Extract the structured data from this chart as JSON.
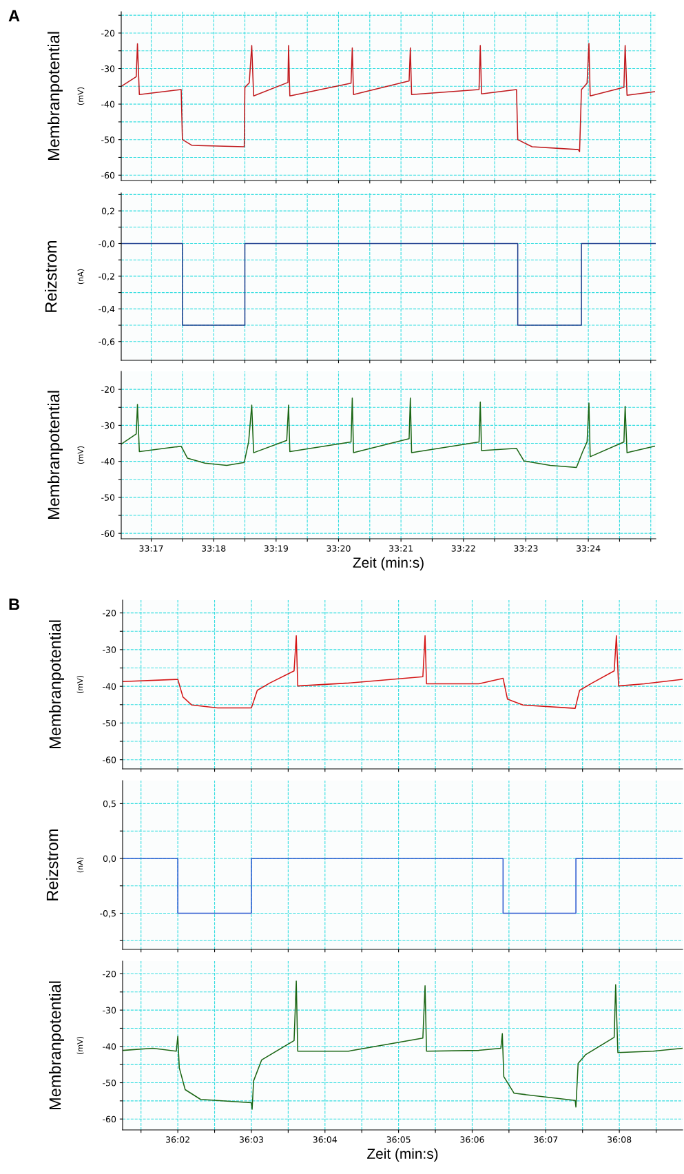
{
  "chart_data": [
    {
      "type": "line",
      "ylabel": "Membranpotential",
      "annotations": [
        "(mV)",
        "A"
      ],
      "tick_labels": "y",
      "grid": true,
      "xlim": [
        1996.52,
        2005.08
      ],
      "ylim": [
        -61.5,
        -14
      ],
      "xticks": [
        1997,
        1997.5,
        1998,
        1998.5,
        1999,
        1999.5,
        2000,
        2000.5,
        2001,
        2001.5,
        2002,
        2002.5,
        2003,
        2003.5,
        2004,
        2004.5,
        2005
      ],
      "yticks": [
        {
          "value": -15,
          "label": null
        },
        -20,
        {
          "value": -25,
          "label": null
        },
        -30,
        {
          "value": -35,
          "label": null
        },
        -40,
        {
          "value": -45,
          "label": null
        },
        -50,
        {
          "value": -55,
          "label": null
        },
        -60
      ],
      "series": [
        {
          "color": "#c0181c",
          "x": [
            1996.52,
            1996.76,
            1996.78,
            1996.81,
            1997.48,
            1997.5,
            1997.65,
            1998.49,
            1998.5,
            1998.57,
            1998.61,
            1998.64,
            1999.19,
            1999.2,
            1999.22,
            2000.2,
            2000.22,
            2000.24,
            2001.13,
            2001.15,
            2001.17,
            2002.25,
            2002.27,
            2002.29,
            2002.85,
            2002.87,
            2003.1,
            2003.84,
            2003.86,
            2003.89,
            2003.98,
            2004.01,
            2004.03,
            2004.57,
            2004.59,
            2004.62,
            2005.06
          ],
          "values": [
            -35,
            -32.3,
            -23,
            -37.3,
            -35.9,
            -50,
            -51.6,
            -52,
            -35.3,
            -34,
            -23.5,
            -37.7,
            -33.9,
            -23.5,
            -37.7,
            -34.1,
            -24.2,
            -37.3,
            -33.5,
            -24.2,
            -37.3,
            -35.9,
            -23.5,
            -37.1,
            -35.9,
            -50,
            -52,
            -52.8,
            -53.4,
            -35.9,
            -34.1,
            -22.9,
            -37.7,
            -35.3,
            -23.5,
            -37.5,
            -36.5
          ]
        }
      ]
    },
    {
      "type": "step",
      "ylabel": "Reizstrom",
      "annotations": [
        "(nA)"
      ],
      "tick_labels": "y",
      "grid": true,
      "xlim": [
        1996.52,
        2005.08
      ],
      "ylim": [
        -0.715,
        0.31
      ],
      "xticks": [
        1997,
        1997.5,
        1998,
        1998.5,
        1999,
        1999.5,
        2000,
        2000.5,
        2001,
        2001.5,
        2002,
        2002.5,
        2003,
        2003.5,
        2004,
        2004.5,
        2005
      ],
      "yticks": [
        {
          "value": 0.3,
          "label": null
        },
        {
          "value": 0.2,
          "label": "0,2"
        },
        {
          "value": 0.1,
          "label": null
        },
        {
          "value": 0,
          "label": "-0,0"
        },
        {
          "value": -0.1,
          "label": null
        },
        {
          "value": -0.2,
          "label": "-0,2"
        },
        {
          "value": -0.3,
          "label": null
        },
        {
          "value": -0.4,
          "label": "-0,4"
        },
        {
          "value": -0.5,
          "label": null
        },
        {
          "value": -0.6,
          "label": "-0,6"
        }
      ],
      "series": [
        {
          "color": "#1f3f8f",
          "x": [
            1996.52,
            1997.5,
            1998.5,
            2002.87,
            2003.89,
            2005.08
          ],
          "values": [
            0,
            -0.5,
            0,
            -0.5,
            0,
            0
          ]
        }
      ]
    },
    {
      "type": "line",
      "ylabel": "Membranpotential",
      "xlabel": "Zeit (min:s)",
      "annotations": [
        "(mV)"
      ],
      "grid": true,
      "xlim": [
        1996.52,
        2005.08
      ],
      "ylim": [
        -61.5,
        -15
      ],
      "xticks": [
        {
          "value": 1997,
          "label": "33:17"
        },
        {
          "value": 1997.5,
          "label": null
        },
        {
          "value": 1998,
          "label": "33:18"
        },
        {
          "value": 1998.5,
          "label": null
        },
        {
          "value": 1999,
          "label": "33:19"
        },
        {
          "value": 1999.5,
          "label": null
        },
        {
          "value": 2000,
          "label": "33:20"
        },
        {
          "value": 2000.5,
          "label": null
        },
        {
          "value": 2001,
          "label": "33:21"
        },
        {
          "value": 2001.5,
          "label": null
        },
        {
          "value": 2002,
          "label": "33:22"
        },
        {
          "value": 2002.5,
          "label": null
        },
        {
          "value": 2003,
          "label": "33:23"
        },
        {
          "value": 2003.5,
          "label": null
        },
        {
          "value": 2004,
          "label": "33:24"
        },
        {
          "value": 2004.5,
          "label": null
        },
        {
          "value": 2005,
          "label": null
        }
      ],
      "yticks": [
        -20,
        {
          "value": -25,
          "label": null
        },
        -30,
        {
          "value": -35,
          "label": null
        },
        -40,
        {
          "value": -45,
          "label": null
        },
        -50,
        {
          "value": -55,
          "label": null
        },
        -60
      ],
      "series": [
        {
          "color": "#1b6614",
          "x": [
            1996.52,
            1996.76,
            1996.78,
            1996.81,
            1997.48,
            1997.58,
            1997.86,
            1998.21,
            1998.49,
            1998.56,
            1998.61,
            1998.64,
            1999.17,
            1999.2,
            1999.22,
            2000.2,
            2000.22,
            2000.24,
            2001.13,
            2001.15,
            2001.17,
            2002.25,
            2002.27,
            2002.29,
            2002.85,
            2002.97,
            2003.39,
            2003.81,
            2003.91,
            2003.98,
            2004.01,
            2004.03,
            2004.57,
            2004.59,
            2004.62,
            2005.06
          ],
          "values": [
            -35.2,
            -32.4,
            -24.2,
            -37.3,
            -35.8,
            -39.1,
            -40.5,
            -41.1,
            -40.3,
            -34.6,
            -24.4,
            -37.6,
            -34.2,
            -24.4,
            -37.3,
            -34.6,
            -22.4,
            -37.6,
            -33.7,
            -22.4,
            -37.6,
            -34.6,
            -23.5,
            -37,
            -36.4,
            -39.9,
            -41.1,
            -41.7,
            -37.3,
            -34.6,
            -23.8,
            -38.7,
            -34.6,
            -24.7,
            -37.6,
            -35.8
          ]
        }
      ]
    },
    {
      "type": "line",
      "ylabel": "Membranpotential",
      "annotations": [
        "(mV)",
        "B"
      ],
      "tick_labels": "y",
      "grid": true,
      "xlim": [
        2161.25,
        2168.86
      ],
      "ylim": [
        -62.5,
        -16.5
      ],
      "xticks": [
        2161.5,
        2162,
        2162.5,
        2163,
        2163.5,
        2164,
        2164.5,
        2165,
        2165.5,
        2166,
        2166.5,
        2167,
        2167.5,
        2168,
        2168.5
      ],
      "yticks": [
        -20,
        {
          "value": -25,
          "label": null
        },
        -30,
        {
          "value": -35,
          "label": null
        },
        -40,
        {
          "value": -45,
          "label": null
        },
        -50,
        {
          "value": -55,
          "label": null
        },
        -60
      ],
      "series": [
        {
          "color": "#d41616",
          "x": [
            2161.25,
            2162,
            2162.07,
            2162.19,
            2162.54,
            2163,
            2163.08,
            2163.25,
            2163.58,
            2163.61,
            2163.63,
            2164.32,
            2165.33,
            2165.36,
            2165.38,
            2166.09,
            2166.42,
            2166.48,
            2166.69,
            2167.4,
            2167.46,
            2167.63,
            2167.93,
            2167.96,
            2167.99,
            2168.34,
            2168.86
          ],
          "values": [
            -38.7,
            -38.1,
            -42.9,
            -45.1,
            -45.9,
            -45.9,
            -41.1,
            -39.1,
            -35.8,
            -26.2,
            -39.9,
            -39.1,
            -37.4,
            -26.2,
            -39.3,
            -39.3,
            -37.8,
            -43.5,
            -45.1,
            -46,
            -41.1,
            -39.1,
            -35.8,
            -26.2,
            -39.9,
            -39.3,
            -38.1
          ]
        }
      ]
    },
    {
      "type": "step",
      "ylabel": "Reizstrom",
      "annotations": [
        "(nA)"
      ],
      "tick_labels": "y",
      "grid": true,
      "xlim": [
        2161.25,
        2168.86
      ],
      "ylim": [
        -0.83,
        0.71
      ],
      "xticks": [
        2161.5,
        2162,
        2162.5,
        2163,
        2163.5,
        2164,
        2164.5,
        2165,
        2165.5,
        2166,
        2166.5,
        2167,
        2167.5,
        2168,
        2168.5
      ],
      "yticks": [
        {
          "value": 0.5,
          "label": "0,5"
        },
        {
          "value": 0.25,
          "label": null
        },
        {
          "value": 0,
          "label": "0,0"
        },
        {
          "value": -0.25,
          "label": null
        },
        {
          "value": -0.5,
          "label": "-0,5"
        },
        {
          "value": -0.75,
          "label": null
        }
      ],
      "series": [
        {
          "color": "#2a58d0",
          "x": [
            2161.25,
            2162,
            2163,
            2166.42,
            2167.41,
            2168.86
          ],
          "values": [
            0,
            -0.5,
            0,
            -0.5,
            0,
            0
          ]
        }
      ]
    },
    {
      "type": "line",
      "ylabel": "Membranpotential",
      "xlabel": "Zeit (min:s)",
      "annotations": [
        "(mV)"
      ],
      "grid": true,
      "xlim": [
        2161.25,
        2168.86
      ],
      "ylim": [
        -63,
        -16.5
      ],
      "xticks": [
        {
          "value": 2161.5,
          "label": null
        },
        {
          "value": 2162,
          "label": "36:02"
        },
        {
          "value": 2162.5,
          "label": null
        },
        {
          "value": 2163,
          "label": "36:03"
        },
        {
          "value": 2163.5,
          "label": null
        },
        {
          "value": 2164,
          "label": "36:04"
        },
        {
          "value": 2164.5,
          "label": null
        },
        {
          "value": 2165,
          "label": "36:05"
        },
        {
          "value": 2165.5,
          "label": null
        },
        {
          "value": 2166,
          "label": "36:06"
        },
        {
          "value": 2166.5,
          "label": null
        },
        {
          "value": 2167,
          "label": "36:07"
        },
        {
          "value": 2167.5,
          "label": null
        },
        {
          "value": 2168,
          "label": "36:08"
        },
        {
          "value": 2168.5,
          "label": null
        }
      ],
      "yticks": [
        -20,
        {
          "value": -25,
          "label": null
        },
        -30,
        {
          "value": -35,
          "label": null
        },
        -40,
        {
          "value": -45,
          "label": null
        },
        -50,
        {
          "value": -55,
          "label": null
        },
        -60
      ],
      "series": [
        {
          "color": "#1b6614",
          "x": [
            2161.25,
            2161.66,
            2161.98,
            2162,
            2162.02,
            2162.1,
            2162.31,
            2163,
            2163.01,
            2163.03,
            2163.14,
            2163.58,
            2163.61,
            2163.63,
            2164.32,
            2165.33,
            2165.36,
            2165.38,
            2166.09,
            2166.39,
            2166.41,
            2166.43,
            2166.57,
            2167.4,
            2167.41,
            2167.44,
            2167.54,
            2167.93,
            2167.95,
            2167.98,
            2168.46,
            2168.86
          ],
          "values": [
            -41.1,
            -40.5,
            -41.3,
            -37.2,
            -45.9,
            -51.9,
            -54.6,
            -55.5,
            -57.3,
            -49.5,
            -43.7,
            -38.4,
            -22,
            -41.3,
            -41.3,
            -37.7,
            -23.3,
            -41.3,
            -41.1,
            -40.5,
            -36.5,
            -48.3,
            -52.9,
            -54.9,
            -56.7,
            -44.7,
            -42.3,
            -37.5,
            -23,
            -41.7,
            -41.3,
            -40.5
          ]
        }
      ]
    }
  ]
}
